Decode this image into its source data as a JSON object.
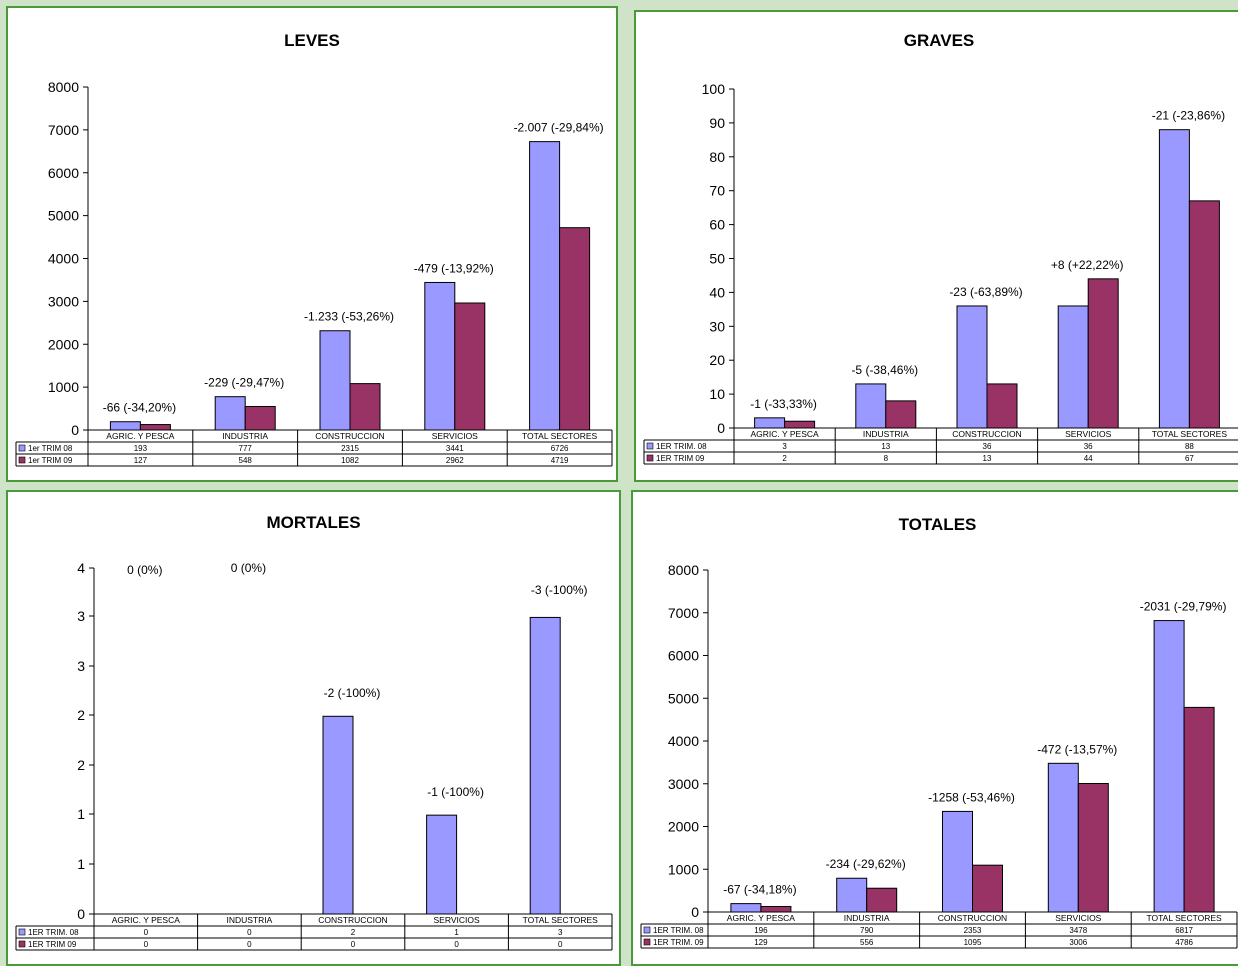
{
  "colors": {
    "series1": "#9999ff",
    "series2": "#993366",
    "frame": "#4a9a3a"
  },
  "chart_data": [
    {
      "type": "bar",
      "title": "LEVES",
      "categories": [
        "AGRIC. Y PESCA",
        "INDUSTRIA",
        "CONSTRUCCION",
        "SERVICIOS",
        "TOTAL SECTORES"
      ],
      "series": [
        {
          "name": "1er TRIM 08",
          "values": [
            193,
            777,
            2315,
            3441,
            6726
          ]
        },
        {
          "name": "1er TRIM 09",
          "values": [
            127,
            548,
            1082,
            2962,
            4719
          ]
        }
      ],
      "annotations": [
        "-66 (-34,20%)",
        "-229 (-29,47%)",
        "-1.233 (-53,26%)",
        "-479 (-13,92%)",
        "-2.007 (-29,84%)"
      ],
      "yticks": [
        "0",
        "1000",
        "2000",
        "3000",
        "4000",
        "5000",
        "6000",
        "7000",
        "8000"
      ],
      "ylim": [
        0,
        8000
      ]
    },
    {
      "type": "bar",
      "title": "GRAVES",
      "categories": [
        "AGRIC. Y PESCA",
        "INDUSTRIA",
        "CONSTRUCCION",
        "SERVICIOS",
        "TOTAL SECTORES"
      ],
      "series": [
        {
          "name": "1ER TRIM. 08",
          "values": [
            3,
            13,
            36,
            36,
            88
          ]
        },
        {
          "name": "1ER TRIM 09",
          "values": [
            2,
            8,
            13,
            44,
            67
          ]
        }
      ],
      "annotations": [
        "-1 (-33,33%)",
        "-5 (-38,46%)",
        "-23 (-63,89%)",
        "+8 (+22,22%)",
        "-21 (-23,86%)"
      ],
      "yticks": [
        "0",
        "10",
        "20",
        "30",
        "40",
        "50",
        "60",
        "70",
        "80",
        "90",
        "100"
      ],
      "ylim": [
        0,
        100
      ]
    },
    {
      "type": "bar",
      "title": "MORTALES",
      "categories": [
        "AGRIC. Y PESCA",
        "INDUSTRIA",
        "CONSTRUCCION",
        "SERVICIOS",
        "TOTAL SECTORES"
      ],
      "series": [
        {
          "name": "1ER TRIM. 08",
          "values": [
            0,
            0,
            2,
            1,
            3
          ]
        },
        {
          "name": "1ER TRIM 09",
          "values": [
            0,
            0,
            0,
            0,
            0
          ]
        }
      ],
      "annotations": [
        "0 (0%)",
        "0 (0%)",
        "-2 (-100%)",
        "-1 (-100%)",
        "-3 (-100%)"
      ],
      "yticks": [
        "0",
        "1",
        "1",
        "2",
        "2",
        "3",
        "3",
        "4"
      ],
      "ylim": [
        0,
        3.5
      ]
    },
    {
      "type": "bar",
      "title": "TOTALES",
      "categories": [
        "AGRIC. Y PESCA",
        "INDUSTRIA",
        "CONSTRUCCION",
        "SERVICIOS",
        "TOTAL SECTORES"
      ],
      "series": [
        {
          "name": "1ER TRIM. 08",
          "values": [
            196,
            790,
            2353,
            3478,
            6817
          ]
        },
        {
          "name": "1ER TRIM. 09",
          "values": [
            129,
            556,
            1095,
            3006,
            4786
          ]
        }
      ],
      "annotations": [
        "-67 (-34,18%)",
        "-234 (-29,62%)",
        "-1258 (-53,46%)",
        "-472 (-13,57%)",
        "-2031 (-29,79%)"
      ],
      "yticks": [
        "0",
        "1000",
        "2000",
        "3000",
        "4000",
        "5000",
        "6000",
        "7000",
        "8000"
      ],
      "ylim": [
        0,
        8000
      ]
    }
  ]
}
